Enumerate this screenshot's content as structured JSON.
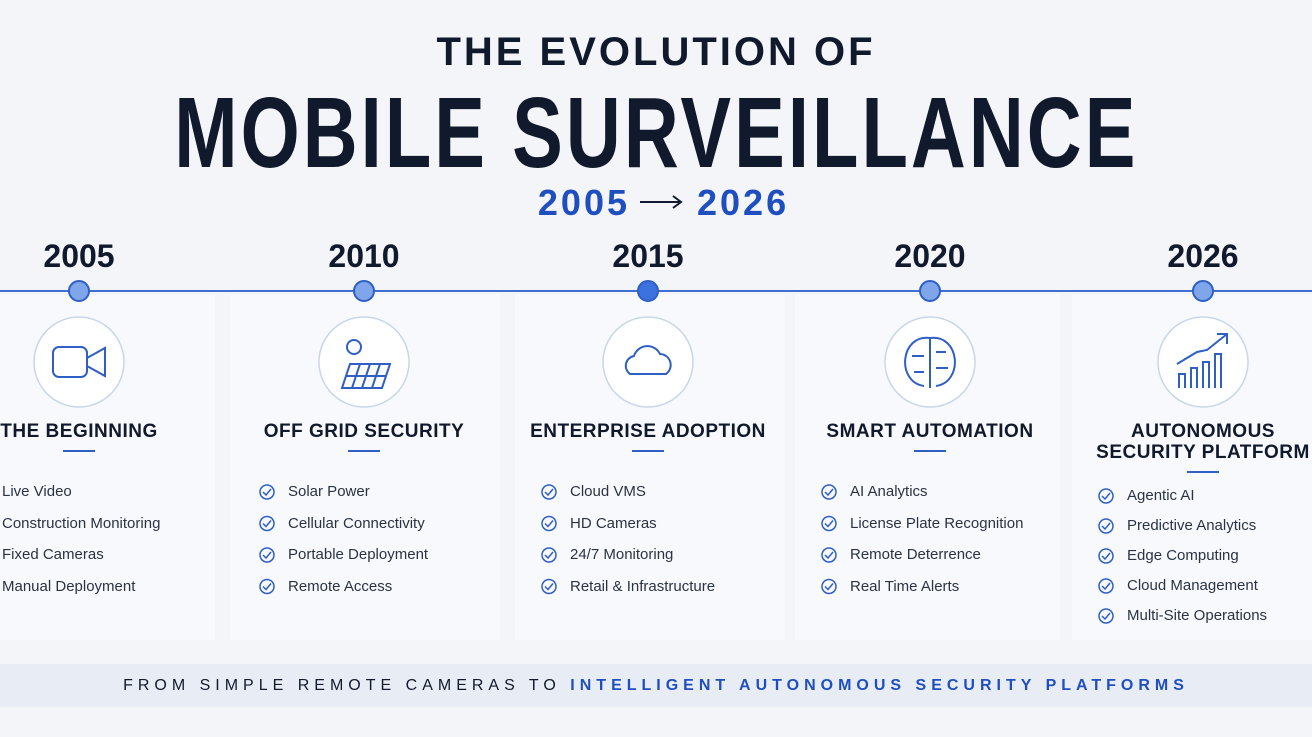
{
  "header": {
    "title_top": "THE EVOLUTION OF",
    "title_main": "MOBILE SURVEILLANCE",
    "range_start": "2005",
    "range_end": "2026"
  },
  "timeline": [
    {
      "year": "2005",
      "title": "THE BEGINNING",
      "features": [
        "Live Video",
        "Construction Monitoring",
        "Fixed Cameras",
        "Manual Deployment"
      ]
    },
    {
      "year": "2010",
      "title": "OFF GRID SECURITY",
      "features": [
        "Solar Power",
        "Cellular Connectivity",
        "Portable Deployment",
        "Remote Access"
      ]
    },
    {
      "year": "2015",
      "title": "ENTERPRISE ADOPTION",
      "features": [
        "Cloud VMS",
        "HD Cameras",
        "24/7 Monitoring",
        "Retail & Infrastructure"
      ]
    },
    {
      "year": "2020",
      "title": "SMART AUTOMATION",
      "features": [
        "AI Analytics",
        "License Plate Recognition",
        "Remote Deterrence",
        "Real Time Alerts"
      ]
    },
    {
      "year": "2026",
      "title": "AUTONOMOUS SECURITY PLATFORM",
      "features": [
        "Agentic AI",
        "Predictive Analytics",
        "Edge Computing",
        "Cloud Management",
        "Multi-Site Operations"
      ]
    }
  ],
  "footer": {
    "text": "FROM SIMPLE REMOTE CAMERAS TO",
    "highlight": "INTELLIGENT AUTONOMOUS SECURITY PLATFORMS"
  }
}
